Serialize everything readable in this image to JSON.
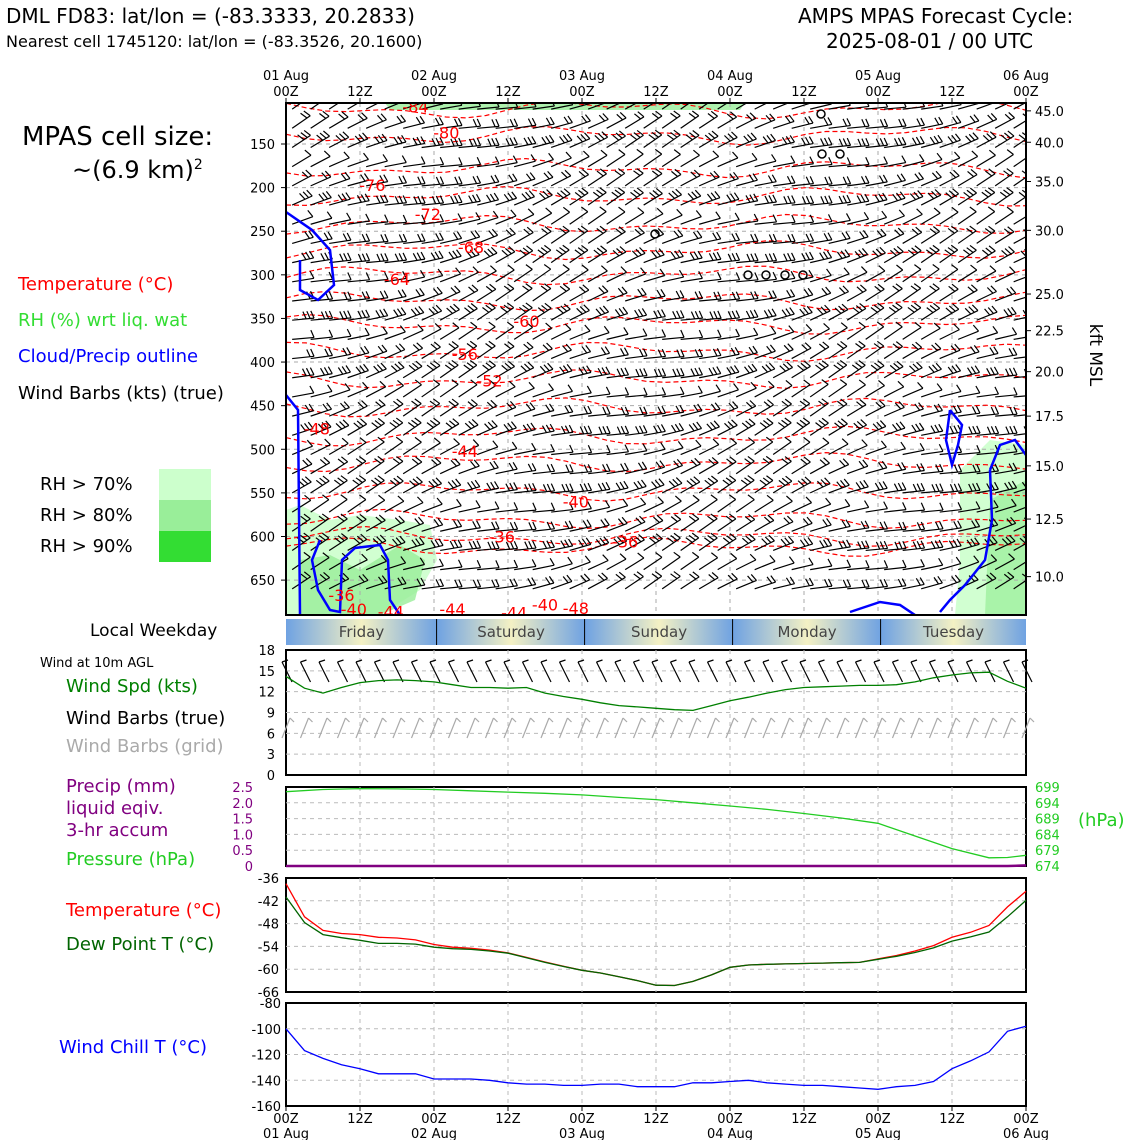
{
  "header": {
    "station_title": "DML FD83: lat/lon = (-83.3333, 20.2833)",
    "nearest_cell": "Nearest cell 1745120: lat/lon = (-83.3526, 20.1600)",
    "model_title": "AMPS MPAS Forecast Cycle:",
    "cycle": "2025-08-01 / 00 UTC"
  },
  "left_legend": {
    "cell_size_title": "MPAS cell size:",
    "cell_size_value": "~(6.9 km)",
    "cell_size_exp": "2",
    "temperature": "Temperature (°C)",
    "rh": "RH (%) wrt liq. wat",
    "cloud": "Cloud/Precip outline",
    "wind": "Wind Barbs (kts) (true)",
    "rh70": "RH > 70%",
    "rh80": "RH > 80%",
    "rh90": "RH > 90%",
    "local_weekday": "Local Weekday",
    "wind10m": "Wind at 10m AGL",
    "wind_spd": "Wind Spd (kts)",
    "wind_barbs_true": "Wind Barbs (true)",
    "wind_barbs_grid": "Wind Barbs (grid)",
    "precip1": "Precip (mm)",
    "precip2": "liquid eqiv.",
    "precip3": "3-hr accum",
    "pressure": "Pressure (hPa)",
    "temp2": "Temperature (°C)",
    "dewpt": "Dew Point T (°C)",
    "windchill": "Wind Chill T (°C)"
  },
  "colors": {
    "temperature": "#ff0000",
    "rh": "#33dd33",
    "cloud": "#0000ff",
    "wind_speed": "#008000",
    "precip": "#800080",
    "pressure": "#22cc22",
    "dewpoint": "#006400",
    "windchill": "#0000ff",
    "rh70": "#ccffcc",
    "rh80": "#99ee99",
    "rh90": "#33dd33"
  },
  "time_axis": {
    "top_ticks": [
      {
        "l1": "01 Aug",
        "l2": "00Z"
      },
      {
        "l1": "",
        "l2": "12Z"
      },
      {
        "l1": "02 Aug",
        "l2": "00Z"
      },
      {
        "l1": "",
        "l2": "12Z"
      },
      {
        "l1": "03 Aug",
        "l2": "00Z"
      },
      {
        "l1": "",
        "l2": "12Z"
      },
      {
        "l1": "04 Aug",
        "l2": "00Z"
      },
      {
        "l1": "",
        "l2": "12Z"
      },
      {
        "l1": "05 Aug",
        "l2": "00Z"
      },
      {
        "l1": "",
        "l2": "12Z"
      },
      {
        "l1": "06 Aug",
        "l2": "00Z"
      }
    ],
    "weekdays": [
      "Friday",
      "Saturday",
      "Sunday",
      "Monday",
      "Tuesday"
    ]
  },
  "chart_data": [
    {
      "type": "heatmap",
      "name": "cross_section",
      "x_range_hours": [
        0,
        120
      ],
      "y_left_ticks_hpa": [
        150,
        200,
        250,
        300,
        350,
        400,
        450,
        500,
        550,
        600,
        650
      ],
      "y_right_label": "kft MSL",
      "y_right_ticks_kft": [
        {
          "label": "45.0",
          "p": 112
        },
        {
          "label": "40.0",
          "p": 148
        },
        {
          "label": "35.0",
          "p": 193
        },
        {
          "label": "30.0",
          "p": 249
        },
        {
          "label": "25.0",
          "p": 322
        },
        {
          "label": "22.5",
          "p": 364
        },
        {
          "label": "20.0",
          "p": 411
        },
        {
          "label": "17.5",
          "p": 462
        },
        {
          "label": "15.0",
          "p": 519
        },
        {
          "label": "12.5",
          "p": 580
        },
        {
          "label": "10.0",
          "p": 646
        }
      ],
      "temperature_labels": [
        {
          "t": "-84",
          "h": 21,
          "p": 107
        },
        {
          "t": "-80",
          "h": 26,
          "p": 137
        },
        {
          "t": "-76",
          "h": 14,
          "p": 197
        },
        {
          "t": "-72",
          "h": 23,
          "p": 230
        },
        {
          "t": "-68",
          "h": 30,
          "p": 268
        },
        {
          "t": "-64",
          "h": 18,
          "p": 305
        },
        {
          "t": "-60",
          "h": 39,
          "p": 353
        },
        {
          "t": "-56",
          "h": 29,
          "p": 391
        },
        {
          "t": "-52",
          "h": 33,
          "p": 421
        },
        {
          "t": "-48",
          "h": 5,
          "p": 476
        },
        {
          "t": "-44",
          "h": 29,
          "p": 502
        },
        {
          "t": "-40",
          "h": 47,
          "p": 560
        },
        {
          "t": "-36",
          "h": 35,
          "p": 600
        },
        {
          "t": "-36",
          "h": 55,
          "p": 606
        },
        {
          "t": "-36",
          "h": 9,
          "p": 667
        },
        {
          "t": "-40",
          "h": 11,
          "p": 683
        },
        {
          "t": "-44",
          "h": 17,
          "p": 686
        },
        {
          "t": "-44",
          "h": 27,
          "p": 683
        },
        {
          "t": "-44",
          "h": 37,
          "p": 687
        },
        {
          "t": "-40",
          "h": 42,
          "p": 678
        },
        {
          "t": "-48",
          "h": 47,
          "p": 682
        }
      ]
    },
    {
      "type": "line",
      "name": "wind_speed_10m",
      "x_hours": [
        0,
        3,
        6,
        9,
        12,
        15,
        18,
        21,
        24,
        27,
        30,
        33,
        36,
        39,
        42,
        45,
        48,
        51,
        54,
        57,
        60,
        63,
        66,
        69,
        72,
        75,
        78,
        81,
        84,
        87,
        90,
        93,
        96,
        99,
        102,
        105,
        108,
        111,
        114,
        117,
        120
      ],
      "values": [
        14.2,
        12.5,
        11.8,
        12.6,
        13.3,
        13.6,
        13.7,
        13.6,
        13.4,
        13.0,
        12.6,
        12.6,
        12.5,
        12.6,
        11.8,
        11.3,
        10.9,
        10.4,
        10.0,
        9.8,
        9.6,
        9.4,
        9.3,
        10.0,
        10.7,
        11.2,
        11.8,
        12.3,
        12.6,
        12.7,
        12.8,
        12.9,
        12.9,
        13.0,
        13.4,
        14.0,
        14.4,
        14.7,
        14.8,
        13.5,
        12.5
      ],
      "ylim": [
        0,
        18
      ],
      "yticks": [
        0,
        3,
        6,
        9,
        12,
        15,
        18
      ]
    },
    {
      "type": "line",
      "name": "pressure_precip",
      "x_hours": [
        0,
        6,
        12,
        18,
        24,
        30,
        36,
        42,
        48,
        54,
        60,
        66,
        72,
        78,
        84,
        90,
        96,
        102,
        108,
        114,
        117,
        120
      ],
      "pressure_hpa": [
        697.5,
        698.2,
        698.5,
        698.4,
        698.2,
        697.8,
        697.4,
        697.0,
        696.5,
        695.7,
        695.0,
        694.0,
        693.0,
        691.9,
        690.6,
        689.2,
        687.5,
        683.5,
        679.5,
        676.6,
        676.7,
        677.4
      ],
      "precip_mm": [
        0,
        0,
        0,
        0,
        0,
        0,
        0,
        0,
        0,
        0,
        0,
        0,
        0,
        0,
        0,
        0,
        0,
        0,
        0,
        0,
        0,
        0.02
      ],
      "precip_yticks": [
        "2.5",
        "2.0",
        "1.5",
        "1.0",
        "0.5",
        "0"
      ],
      "pressure_yticks": [
        "699",
        "694",
        "689",
        "684",
        "679",
        "674"
      ],
      "pressure_unit": "(hPa)"
    },
    {
      "type": "line",
      "name": "temperature_dewpoint",
      "x_hours": [
        0,
        3,
        6,
        9,
        12,
        15,
        18,
        21,
        24,
        27,
        30,
        33,
        36,
        39,
        42,
        45,
        48,
        51,
        54,
        57,
        60,
        63,
        66,
        69,
        72,
        75,
        78,
        81,
        84,
        87,
        90,
        93,
        96,
        99,
        102,
        105,
        108,
        111,
        114,
        117,
        120
      ],
      "temperature": [
        -37.5,
        -46.2,
        -49.8,
        -50.6,
        -50.9,
        -51.6,
        -51.8,
        -52.3,
        -53.5,
        -54.2,
        -54.5,
        -55.0,
        -55.7,
        -56.9,
        -58.1,
        -59.2,
        -60.3,
        -61.0,
        -62.0,
        -63.0,
        -64.2,
        -64.3,
        -63.2,
        -61.5,
        -59.5,
        -58.9,
        -58.7,
        -58.6,
        -58.5,
        -58.4,
        -58.3,
        -58.2,
        -57.3,
        -56.4,
        -55.2,
        -53.8,
        -51.6,
        -50.3,
        -48.5,
        -43.6,
        -39.5
      ],
      "dewpoint": [
        -41.0,
        -47.7,
        -50.9,
        -51.7,
        -52.4,
        -53.2,
        -53.2,
        -53.4,
        -54.2,
        -54.6,
        -54.8,
        -55.2,
        -55.8,
        -57.0,
        -58.2,
        -59.3,
        -60.3,
        -61.0,
        -62.0,
        -63.0,
        -64.2,
        -64.3,
        -63.2,
        -61.5,
        -59.5,
        -58.9,
        -58.7,
        -58.6,
        -58.5,
        -58.4,
        -58.3,
        -58.2,
        -57.4,
        -56.6,
        -55.6,
        -54.4,
        -52.6,
        -51.5,
        -50.2,
        -46.2,
        -41.9
      ],
      "ylim": [
        -66,
        -36
      ],
      "yticks": [
        -36,
        -42,
        -48,
        -54,
        -60,
        -66
      ]
    },
    {
      "type": "line",
      "name": "wind_chill",
      "x_hours": [
        0,
        3,
        6,
        9,
        12,
        15,
        18,
        21,
        24,
        27,
        30,
        33,
        36,
        39,
        42,
        45,
        48,
        51,
        54,
        57,
        60,
        63,
        66,
        69,
        72,
        75,
        78,
        81,
        84,
        87,
        90,
        93,
        96,
        99,
        102,
        105,
        108,
        111,
        114,
        117,
        120
      ],
      "values": [
        -100,
        -117,
        -123,
        -128,
        -131,
        -135,
        -135,
        -135,
        -139,
        -139,
        -139,
        -140,
        -142,
        -143,
        -143,
        -144,
        -144,
        -143,
        -143,
        -145,
        -145,
        -145,
        -142,
        -142,
        -141,
        -140,
        -142,
        -143,
        -144,
        -144,
        -145,
        -146,
        -147,
        -145,
        -144,
        -141,
        -131,
        -125,
        -118,
        -102,
        -98
      ],
      "ylim": [
        -160,
        -80
      ],
      "yticks": [
        -80,
        -100,
        -120,
        -140,
        -160
      ]
    }
  ],
  "bottom_axis": {
    "ticks": [
      {
        "l1": "00Z",
        "l2": "01 Aug"
      },
      {
        "l1": "12Z",
        "l2": ""
      },
      {
        "l1": "00Z",
        "l2": "02 Aug"
      },
      {
        "l1": "12Z",
        "l2": ""
      },
      {
        "l1": "00Z",
        "l2": "03 Aug"
      },
      {
        "l1": "12Z",
        "l2": ""
      },
      {
        "l1": "00Z",
        "l2": "04 Aug"
      },
      {
        "l1": "12Z",
        "l2": ""
      },
      {
        "l1": "00Z",
        "l2": "05 Aug"
      },
      {
        "l1": "12Z",
        "l2": ""
      },
      {
        "l1": "00Z",
        "l2": "06 Aug"
      }
    ]
  }
}
